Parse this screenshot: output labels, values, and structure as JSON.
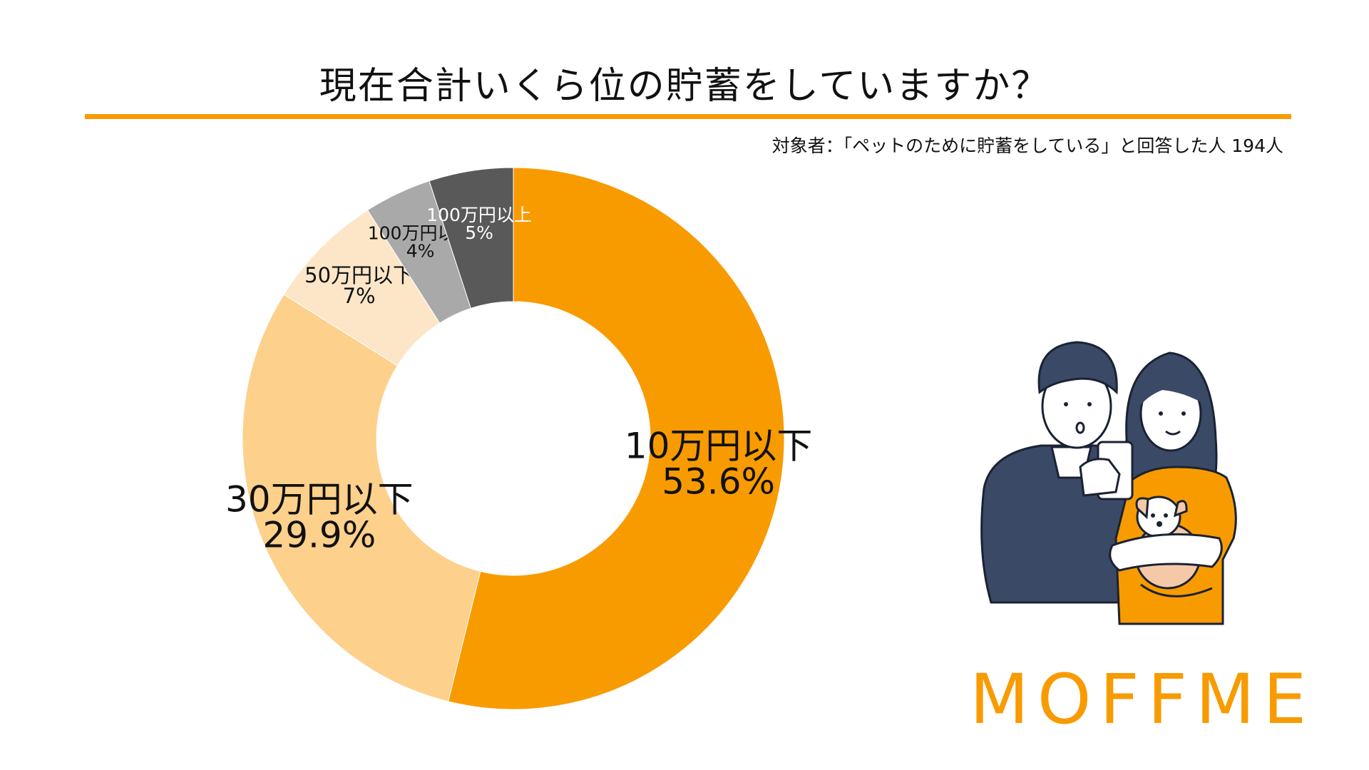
{
  "title": "現在合計いくら位の貯蓄をしていますか？",
  "subtitle": "対象者：「ペットのために貯蓄をしている」と回答した人 194人",
  "brand": "MOFFME",
  "colors": {
    "accent": "#F89B00",
    "brand": "#F89B00",
    "rule": "#F89B00"
  },
  "chart_data": {
    "type": "pie",
    "donut": true,
    "title": "現在合計いくら位の貯蓄をしていますか？",
    "slices": [
      {
        "label": "10万円以下",
        "value": 53.6,
        "value_label": "53.6%",
        "color": "#F89B00",
        "text_color": "#111111"
      },
      {
        "label": "30万円以下",
        "value": 29.9,
        "value_label": "29.9%",
        "color": "#FDD08C",
        "text_color": "#111111"
      },
      {
        "label": "50万円以下",
        "value": 7,
        "value_label": "7%",
        "color": "#FDE6C8",
        "text_color": "#111111"
      },
      {
        "label": "100万円以下",
        "value": 4,
        "value_label": "4%",
        "color": "#A9A9A9",
        "text_color": "#111111"
      },
      {
        "label": "100万円以上",
        "value": 5,
        "value_label": "5%",
        "color": "#595959",
        "text_color": "#ffffff"
      }
    ]
  },
  "illustration_icon": "couple-with-dog-illustration"
}
